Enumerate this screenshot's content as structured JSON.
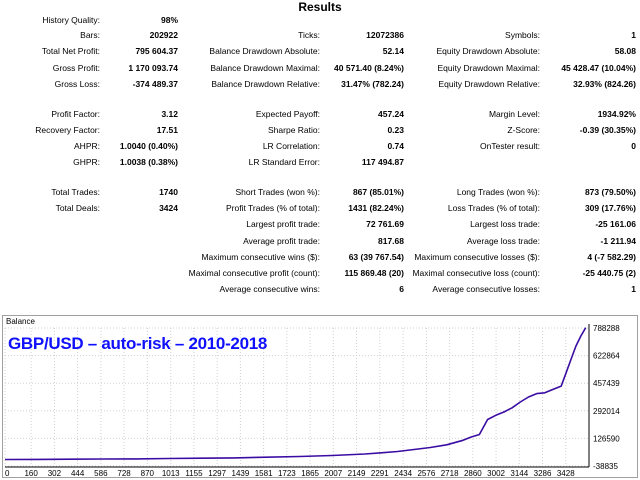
{
  "title": "Results",
  "stats": [
    {
      "key": "history_quality",
      "label": "History Quality:",
      "value": "98%"
    },
    {
      "key": "bars",
      "label": "Bars:",
      "value": "202922"
    },
    {
      "key": "ticks",
      "label": "Ticks:",
      "value": "12072386"
    },
    {
      "key": "symbols",
      "label": "Symbols:",
      "value": "1"
    },
    {
      "key": "total_net_profit",
      "label": "Total Net Profit:",
      "value": "795 604.37"
    },
    {
      "key": "balance_dd_abs",
      "label": "Balance Drawdown Absolute:",
      "value": "52.14"
    },
    {
      "key": "equity_dd_abs",
      "label": "Equity Drawdown Absolute:",
      "value": "58.08"
    },
    {
      "key": "gross_profit",
      "label": "Gross Profit:",
      "value": "1 170 093.74"
    },
    {
      "key": "balance_dd_max",
      "label": "Balance Drawdown Maximal:",
      "value": "40 571.40 (8.24%)"
    },
    {
      "key": "equity_dd_max",
      "label": "Equity Drawdown Maximal:",
      "value": "45 428.47 (10.04%)"
    },
    {
      "key": "gross_loss",
      "label": "Gross Loss:",
      "value": "-374 489.37"
    },
    {
      "key": "balance_dd_rel",
      "label": "Balance Drawdown Relative:",
      "value": "31.47% (782.24)"
    },
    {
      "key": "equity_dd_rel",
      "label": "Equity Drawdown Relative:",
      "value": "32.93% (824.26)"
    },
    {
      "key": "profit_factor",
      "label": "Profit Factor:",
      "value": "3.12"
    },
    {
      "key": "expected_payoff",
      "label": "Expected Payoff:",
      "value": "457.24"
    },
    {
      "key": "margin_level",
      "label": "Margin Level:",
      "value": "1934.92%"
    },
    {
      "key": "recovery_factor",
      "label": "Recovery Factor:",
      "value": "17.51"
    },
    {
      "key": "sharpe_ratio",
      "label": "Sharpe Ratio:",
      "value": "0.23"
    },
    {
      "key": "z_score",
      "label": "Z-Score:",
      "value": "-0.39 (30.35%)"
    },
    {
      "key": "ahpr",
      "label": "AHPR:",
      "value": "1.0040 (0.40%)"
    },
    {
      "key": "lr_correlation",
      "label": "LR Correlation:",
      "value": "0.74"
    },
    {
      "key": "ontester_result",
      "label": "OnTester result:",
      "value": "0"
    },
    {
      "key": "ghpr",
      "label": "GHPR:",
      "value": "1.0038 (0.38%)"
    },
    {
      "key": "lr_std_error",
      "label": "LR Standard Error:",
      "value": "117 494.87"
    },
    {
      "key": "total_trades",
      "label": "Total Trades:",
      "value": "1740"
    },
    {
      "key": "short_trades",
      "label": "Short Trades (won %):",
      "value": "867 (85.01%)"
    },
    {
      "key": "long_trades",
      "label": "Long Trades (won %):",
      "value": "873 (79.50%)"
    },
    {
      "key": "total_deals",
      "label": "Total Deals:",
      "value": "3424"
    },
    {
      "key": "profit_trades",
      "label": "Profit Trades (% of total):",
      "value": "1431 (82.24%)"
    },
    {
      "key": "loss_trades",
      "label": "Loss Trades (% of total):",
      "value": "309 (17.76%)"
    },
    {
      "key": "largest_profit",
      "label": "Largest profit trade:",
      "value": "72 761.69"
    },
    {
      "key": "largest_loss",
      "label": "Largest loss trade:",
      "value": "-25 161.06"
    },
    {
      "key": "avg_profit",
      "label": "Average profit trade:",
      "value": "817.68"
    },
    {
      "key": "avg_loss",
      "label": "Average loss trade:",
      "value": "-1 211.94"
    },
    {
      "key": "max_consec_wins",
      "label": "Maximum consecutive wins ($):",
      "value": "63 (39 767.54)"
    },
    {
      "key": "max_consec_losses",
      "label": "Maximum consecutive losses ($):",
      "value": "4 (-7 582.29)"
    },
    {
      "key": "maximal_consec_profit",
      "label": "Maximal consecutive profit (count):",
      "value": "115 869.48 (20)"
    },
    {
      "key": "maximal_consec_loss",
      "label": "Maximal consecutive loss (count):",
      "value": "-25 440.75 (2)"
    },
    {
      "key": "avg_consec_wins",
      "label": "Average consecutive wins:",
      "value": "6"
    },
    {
      "key": "avg_consec_losses",
      "label": "Average consecutive losses:",
      "value": "1"
    }
  ],
  "chart_panel": {
    "name": "Balance",
    "caption": "GBP/USD – auto-risk – 2010-2018",
    "line_color": "#3a0ca3"
  },
  "chart_data": {
    "type": "line",
    "title": "Balance",
    "xlabel": "",
    "ylabel": "",
    "xlim": [
      0,
      3570
    ],
    "ylim": [
      -38835,
      788288
    ],
    "x_ticks": [
      0,
      160,
      302,
      444,
      586,
      728,
      870,
      1013,
      1155,
      1297,
      1439,
      1581,
      1723,
      1865,
      2007,
      2149,
      2291,
      2434,
      2576,
      2718,
      2860,
      3002,
      3144,
      3286,
      3428
    ],
    "y_ticks": [
      -38835,
      126590,
      292014,
      457439,
      622864,
      788288
    ],
    "grid": true,
    "series": [
      {
        "x": [
          0,
          200,
          400,
          600,
          800,
          1000,
          1200,
          1400,
          1600,
          1800,
          2000,
          2200,
          2300,
          2400,
          2500,
          2600,
          2700,
          2800,
          2850,
          2900,
          2950,
          3000,
          3050,
          3100,
          3150,
          3200,
          3250,
          3300,
          3350,
          3400,
          3430,
          3460,
          3490,
          3520,
          3550
        ],
        "y": [
          0,
          1000,
          2000,
          3000,
          4000,
          6000,
          8000,
          10000,
          14000,
          18000,
          24000,
          33000,
          40000,
          48000,
          60000,
          72000,
          88000,
          115000,
          135000,
          150000,
          240000,
          265000,
          285000,
          310000,
          345000,
          375000,
          395000,
          400000,
          420000,
          440000,
          520000,
          600000,
          680000,
          740000,
          790000
        ]
      }
    ]
  }
}
